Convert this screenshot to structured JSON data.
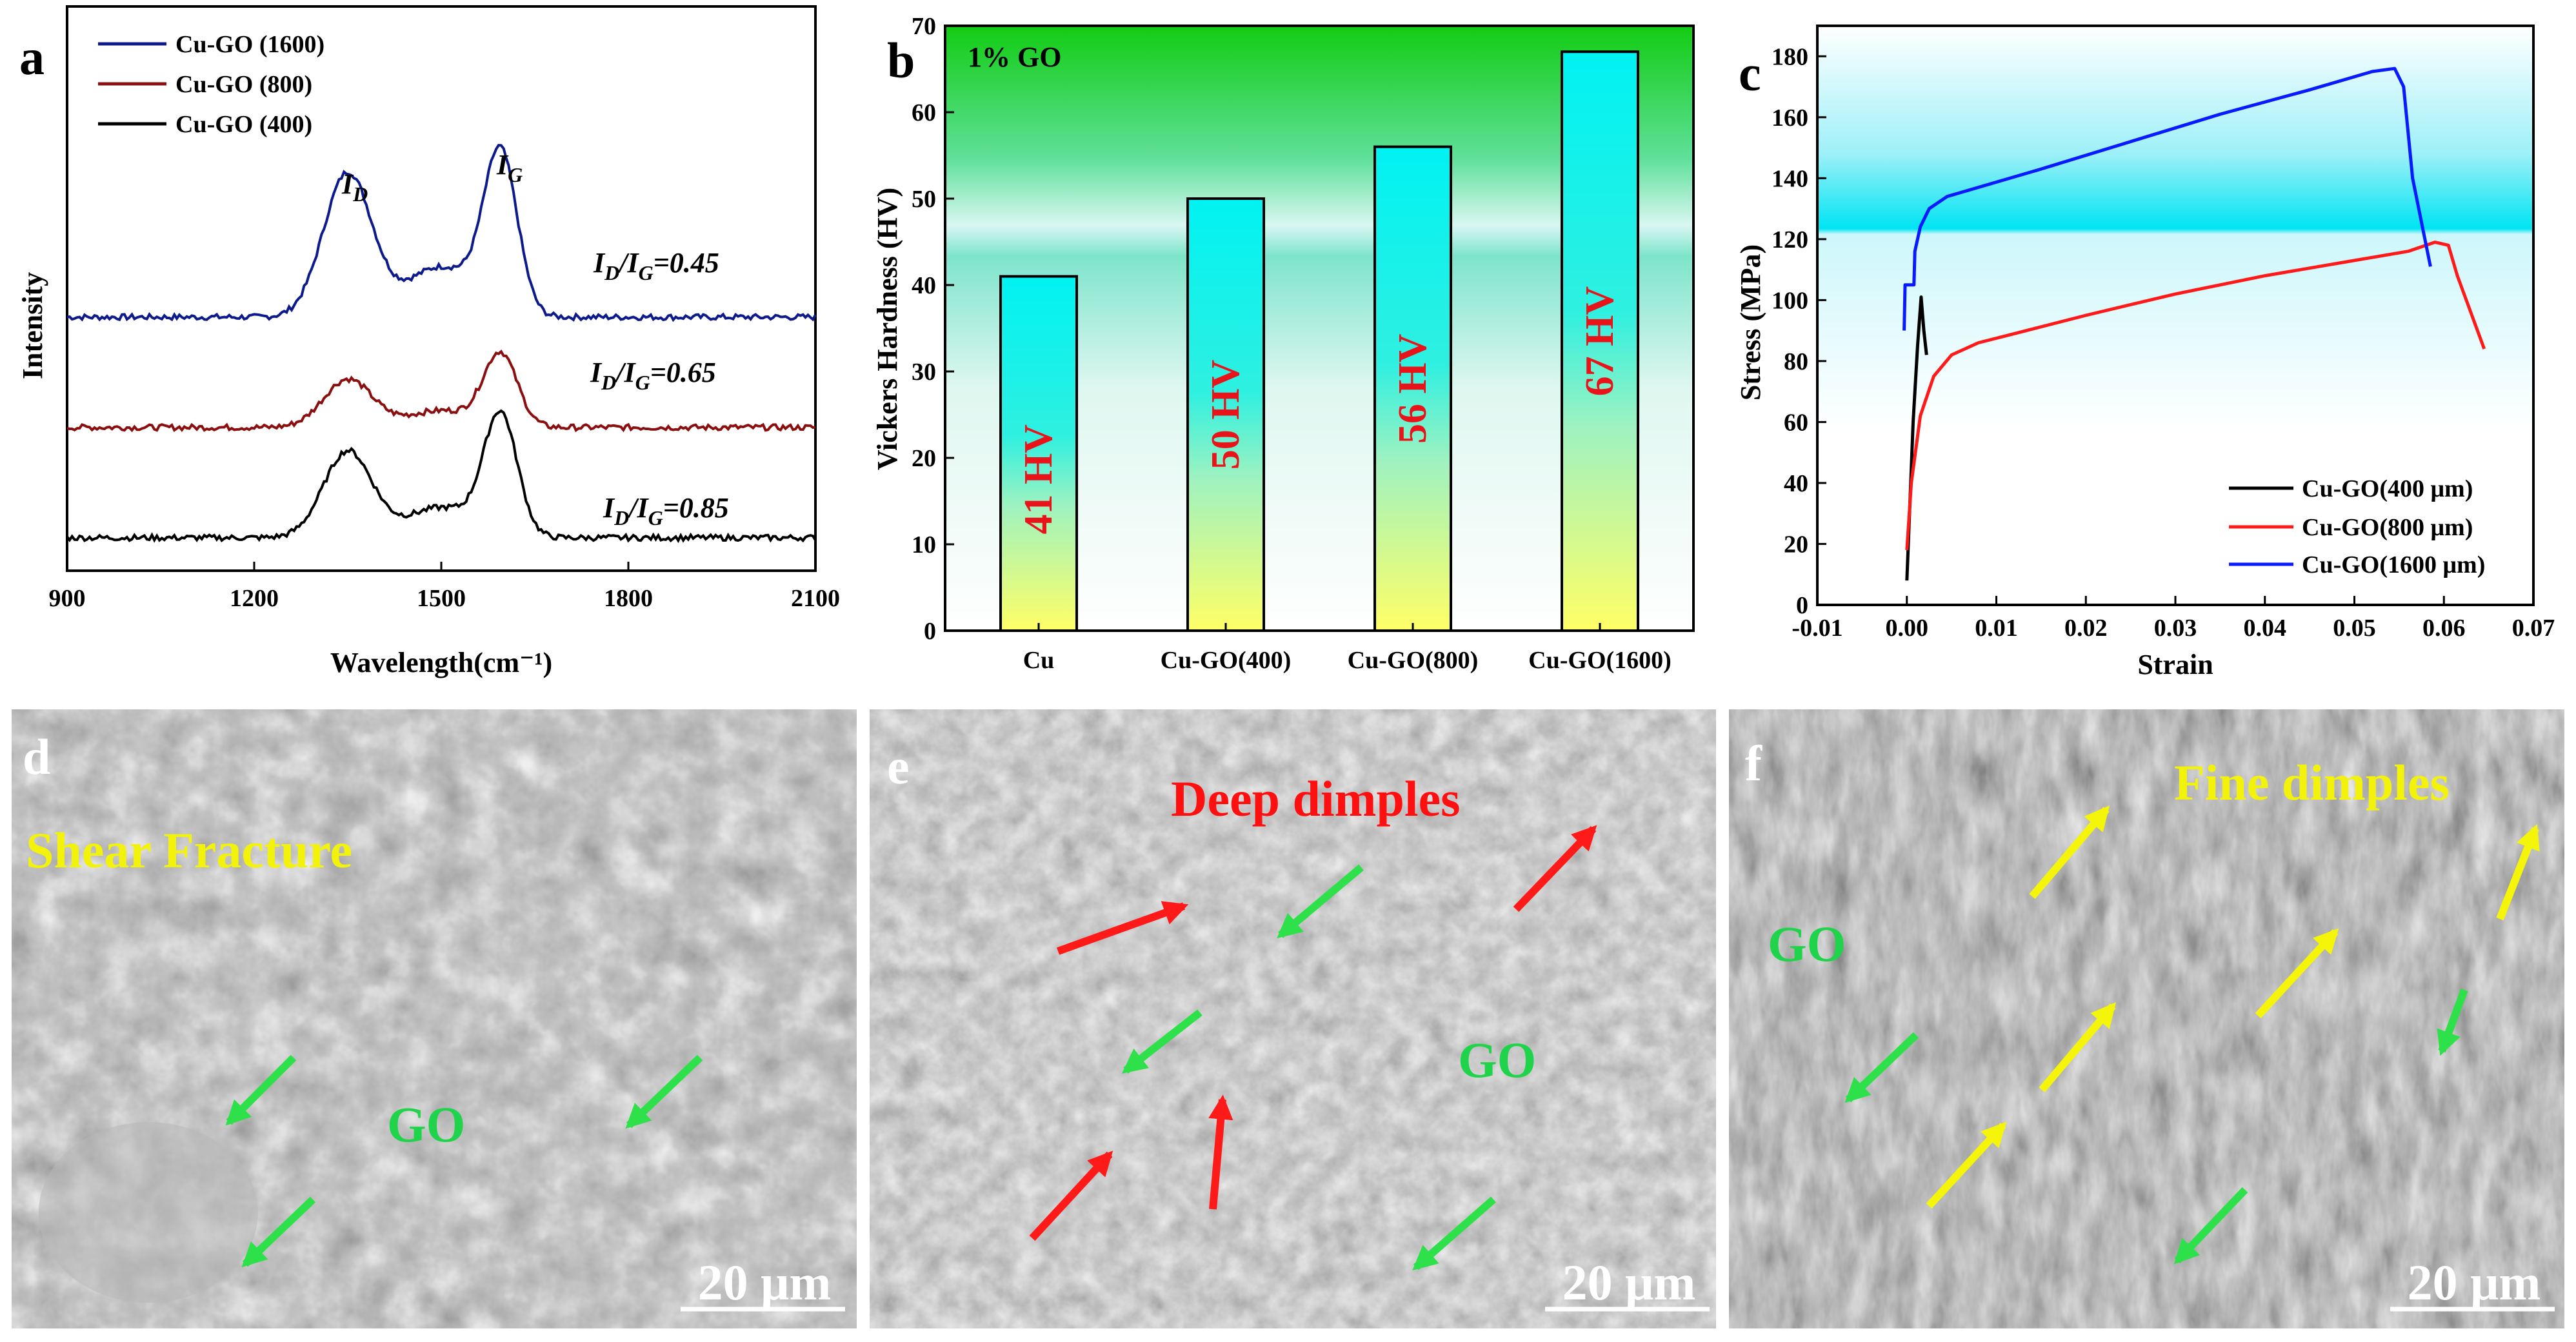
{
  "colors": {
    "blue": "#0d1a8c",
    "darkred": "#8b0f0f",
    "black": "#000000",
    "red": "#ff1a1a",
    "bluebright": "#0a1aff",
    "bar_label": "#e8141a",
    "go_green": "#1fd44a",
    "yellow_text": "#f2f20a",
    "red_text": "#ff1010"
  },
  "chart_data": [
    {
      "panel": "a",
      "type": "line",
      "xlabel": "Wavelength(cm⁻¹)",
      "ylabel": "Intensity",
      "xlim": [
        900,
        2100
      ],
      "xticks": [
        900,
        1200,
        1500,
        1800,
        2100
      ],
      "xtick_labels": [
        "900",
        "1200",
        "1500",
        "1800",
        "2100"
      ],
      "series": [
        {
          "name": "Cu-GO (1600)",
          "color": "#0d1a8c",
          "baseline": 0.47,
          "d_peak": 0.3,
          "g_peak": 0.33,
          "ratio_label": "I_D/I_G=0.45"
        },
        {
          "name": "Cu-GO (800)",
          "color": "#8b0f0f",
          "baseline": 0.24,
          "d_peak": 0.1,
          "g_peak": 0.15,
          "ratio_label": "I_D/I_G=0.65"
        },
        {
          "name": "Cu-GO (400)",
          "color": "#000000",
          "baseline": 0.01,
          "d_peak": 0.18,
          "g_peak": 0.25,
          "ratio_label": "I_D/I_G=0.85"
        }
      ],
      "peaks": [
        {
          "label": "I_D",
          "x": 1350
        },
        {
          "label": "I_G",
          "x": 1595
        }
      ]
    },
    {
      "panel": "b",
      "type": "bar",
      "title": "1% GO",
      "ylabel": "Vickers Hardness (HV)",
      "ylim": [
        0,
        70
      ],
      "yticks": [
        0,
        10,
        20,
        30,
        40,
        50,
        60,
        70
      ],
      "categories": [
        "Cu",
        "Cu-GO(400)",
        "Cu-GO(800)",
        "Cu-GO(1600)"
      ],
      "values": [
        41,
        50,
        56,
        67
      ],
      "labels": [
        "41 HV",
        "50 HV",
        "56 HV",
        "67 HV"
      ]
    },
    {
      "panel": "c",
      "type": "line",
      "xlabel": "Strain",
      "ylabel": "Stress (MPa)",
      "xlim": [
        -0.01,
        0.07
      ],
      "ylim": [
        0,
        190
      ],
      "xticks": [
        -0.01,
        0.0,
        0.01,
        0.02,
        0.03,
        0.04,
        0.05,
        0.06,
        0.07
      ],
      "xtick_labels": [
        "-0.01",
        "0.00",
        "0.01",
        "0.02",
        "0.03",
        "0.04",
        "0.05",
        "0.06",
        "0.07"
      ],
      "yticks": [
        0,
        20,
        40,
        60,
        80,
        100,
        120,
        140,
        160,
        180
      ],
      "series": [
        {
          "name": "Cu-GO(400 μm)",
          "color": "#000000",
          "x": [
            0.0,
            0.0003,
            0.0007,
            0.0012,
            0.0016,
            0.0019,
            0.0022
          ],
          "y": [
            8,
            30,
            60,
            85,
            101,
            90,
            82
          ]
        },
        {
          "name": "Cu-GO(800 μm)",
          "color": "#ff1a1a",
          "x": [
            0.0,
            0.0005,
            0.0015,
            0.003,
            0.005,
            0.008,
            0.012,
            0.02,
            0.03,
            0.04,
            0.05,
            0.056,
            0.059,
            0.0605,
            0.0615,
            0.063,
            0.0645
          ],
          "y": [
            18,
            40,
            62,
            75,
            82,
            86,
            89,
            95,
            102,
            108,
            113,
            116,
            119,
            118,
            108,
            96,
            84
          ]
        },
        {
          "name": "Cu-GO(1600 μm)",
          "color": "#0a1aff",
          "x": [
            -0.0003,
            -0.0002,
            0.0,
            0.0008,
            0.0009,
            0.0015,
            0.0025,
            0.0045,
            0.008,
            0.015,
            0.025,
            0.035,
            0.045,
            0.052,
            0.0545,
            0.0555,
            0.0565,
            0.0585
          ],
          "y": [
            90,
            105,
            105,
            105,
            116,
            124,
            130,
            134,
            137,
            143,
            152,
            161,
            169,
            175,
            176,
            170,
            140,
            111
          ]
        }
      ]
    }
  ],
  "panels": {
    "a": {
      "label": "a"
    },
    "b": {
      "label": "b"
    },
    "c": {
      "label": "c"
    },
    "d": {
      "label": "d",
      "caption": "Shear Fracture",
      "go": "GO",
      "scale": "20 μm"
    },
    "e": {
      "label": "e",
      "caption": "Deep dimples",
      "go": "GO",
      "scale": "20 μm"
    },
    "f": {
      "label": "f",
      "caption": "Fine dimples",
      "go": "GO",
      "scale": "20 μm"
    }
  }
}
